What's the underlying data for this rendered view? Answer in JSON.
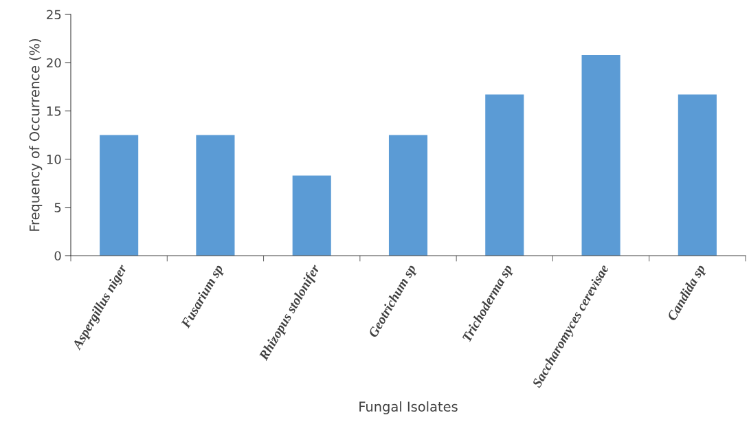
{
  "chart_data": {
    "type": "bar",
    "xlabel": "Fungal Isolates",
    "ylabel": "Frequency of Occurrence (%)",
    "categories": [
      "Aspergillus niger",
      "Fusarium sp",
      "Rhizopus stolonifer",
      "Geotrichum sp",
      "Trichoderma sp",
      "Saccharomyces cerevisae",
      "Candida sp"
    ],
    "values": [
      12.5,
      12.5,
      8.3,
      12.5,
      16.7,
      20.8,
      16.7
    ],
    "color": "#5b9bd5",
    "ylim": [
      0,
      25
    ],
    "yticks": [
      0,
      5,
      10,
      15,
      20,
      25
    ],
    "grid": false
  }
}
